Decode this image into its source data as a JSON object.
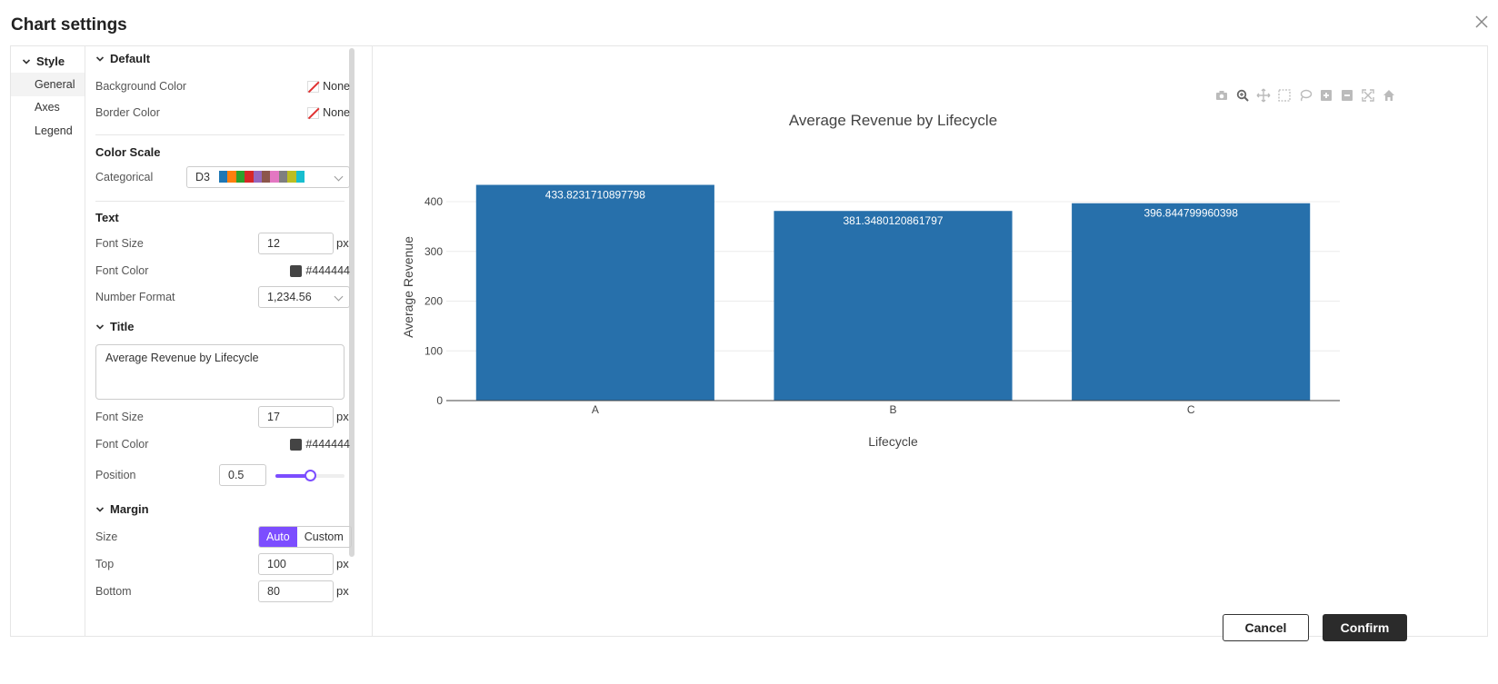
{
  "dialog": {
    "title": "Chart settings",
    "cancel_label": "Cancel",
    "confirm_label": "Confirm"
  },
  "nav": {
    "group": "Style",
    "items": [
      "General",
      "Axes",
      "Legend"
    ],
    "active": "General"
  },
  "panel": {
    "default_section": "Default",
    "background_color_label": "Background Color",
    "background_color_value": "None",
    "border_color_label": "Border Color",
    "border_color_value": "None",
    "color_scale_section": "Color Scale",
    "categorical_label": "Categorical",
    "categorical_value": "D3",
    "d3_palette": [
      "#1f77b4",
      "#ff7f0e",
      "#2ca02c",
      "#d62728",
      "#9467bd",
      "#8c564b",
      "#e377c2",
      "#7f7f7f",
      "#bcbd22",
      "#17becf"
    ],
    "text_section": "Text",
    "text_font_size_label": "Font Size",
    "text_font_size": "12",
    "px": "px",
    "text_font_color_label": "Font Color",
    "text_font_color": "#444444",
    "number_format_label": "Number Format",
    "number_format": "1,234.56",
    "title_section": "Title",
    "title_text": "Average Revenue by Lifecycle",
    "title_font_size_label": "Font Size",
    "title_font_size": "17",
    "title_font_color_label": "Font Color",
    "title_font_color": "#444444",
    "position_label": "Position",
    "position_value": "0.5",
    "position_fraction": 0.5,
    "margin_section": "Margin",
    "size_label": "Size",
    "size_auto": "Auto",
    "size_custom": "Custom",
    "top_label": "Top",
    "top_value": "100",
    "bottom_label": "Bottom",
    "bottom_value": "80"
  },
  "accent_color": "#7c4dff",
  "toolbar_icons": [
    "camera-icon",
    "zoom-icon",
    "pan-icon",
    "box-select-icon",
    "lasso-select-icon",
    "zoom-in-icon",
    "zoom-out-icon",
    "autoscale-icon",
    "reset-axes-home-icon"
  ],
  "chart_data": {
    "type": "bar",
    "title": "Average Revenue by Lifecycle",
    "xlabel": "Lifecycle",
    "ylabel": "Average Revenue",
    "categories": [
      "A",
      "B",
      "C"
    ],
    "values": [
      433.8231710897798,
      381.3480120861797,
      396.844799960398
    ],
    "data_labels": [
      "433.8231710897798",
      "381.3480120861797",
      "396.844799960398"
    ],
    "yticks": [
      0,
      100,
      200,
      300,
      400
    ],
    "ylim": [
      0,
      456.66
    ],
    "bar_color": "#2770ab",
    "grid": true,
    "legend": "none"
  }
}
